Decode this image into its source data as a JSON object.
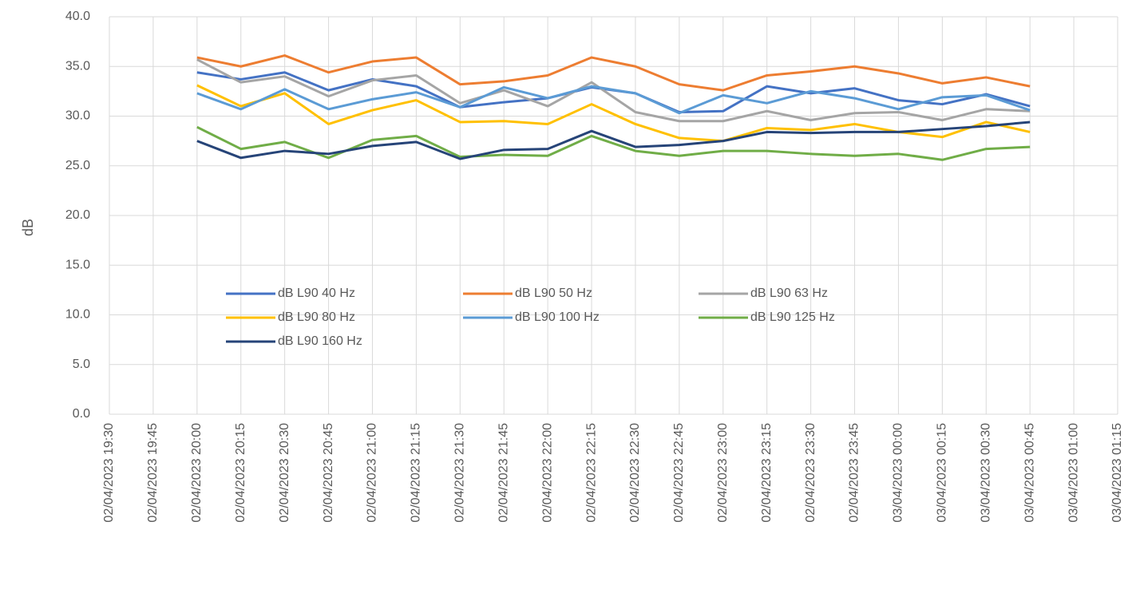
{
  "chart_data": {
    "type": "line",
    "y_label": "dB",
    "categories": [
      "02/04/2023 19:30",
      "02/04/2023 19:45",
      "02/04/2023 20:00",
      "02/04/2023 20:15",
      "02/04/2023 20:30",
      "02/04/2023 20:45",
      "02/04/2023 21:00",
      "02/04/2023 21:15",
      "02/04/2023 21:30",
      "02/04/2023 21:45",
      "02/04/2023 22:00",
      "02/04/2023 22:15",
      "02/04/2023 22:30",
      "02/04/2023 22:45",
      "02/04/2023 23:00",
      "02/04/2023 23:15",
      "02/04/2023 23:30",
      "02/04/2023 23:45",
      "03/04/2023 00:00",
      "03/04/2023 00:15",
      "03/04/2023 00:30",
      "03/04/2023 00:45",
      "03/04/2023 01:00",
      "03/04/2023 01:15"
    ],
    "series": [
      {
        "name": "dB L90 40 Hz",
        "color": "#4472c4",
        "values": [
          null,
          null,
          34.4,
          33.7,
          34.4,
          32.6,
          33.7,
          33.0,
          30.9,
          31.4,
          31.8,
          32.9,
          32.3,
          30.4,
          30.5,
          33.0,
          32.3,
          32.8,
          31.6,
          31.2,
          32.2,
          31.0,
          null,
          null
        ]
      },
      {
        "name": "dB L90 50 Hz",
        "color": "#ed7d31",
        "values": [
          null,
          null,
          35.9,
          35.0,
          36.1,
          34.4,
          35.5,
          35.9,
          33.2,
          33.5,
          34.1,
          35.9,
          35.0,
          33.2,
          32.6,
          34.1,
          34.5,
          35.0,
          34.3,
          33.3,
          33.9,
          33.0,
          null,
          null
        ]
      },
      {
        "name": "dB L90 63 Hz",
        "color": "#a5a5a5",
        "values": [
          null,
          null,
          35.7,
          33.4,
          34.0,
          32.0,
          33.6,
          34.1,
          31.3,
          32.6,
          31.0,
          33.4,
          30.4,
          29.5,
          29.5,
          30.5,
          29.6,
          30.3,
          30.4,
          29.6,
          30.7,
          30.5,
          null,
          null
        ]
      },
      {
        "name": "dB L90 80 Hz",
        "color": "#ffc000",
        "values": [
          null,
          null,
          33.1,
          31.0,
          32.3,
          29.2,
          30.6,
          31.6,
          29.4,
          29.5,
          29.2,
          31.2,
          29.2,
          27.8,
          27.5,
          28.8,
          28.6,
          29.2,
          28.4,
          27.9,
          29.4,
          28.4,
          null,
          null
        ]
      },
      {
        "name": "dB L90 100 Hz",
        "color": "#5b9bd5",
        "values": [
          null,
          null,
          32.3,
          30.7,
          32.7,
          30.7,
          31.7,
          32.4,
          30.9,
          32.9,
          31.8,
          33.0,
          32.3,
          30.3,
          32.1,
          31.3,
          32.5,
          31.8,
          30.7,
          31.9,
          32.1,
          30.6,
          null,
          null
        ]
      },
      {
        "name": "dB L90 125 Hz",
        "color": "#70ad47",
        "values": [
          null,
          null,
          28.9,
          26.7,
          27.4,
          25.8,
          27.6,
          28.0,
          25.9,
          26.1,
          26.0,
          28.0,
          26.5,
          26.0,
          26.5,
          26.5,
          26.2,
          26.0,
          26.2,
          25.6,
          26.7,
          26.9,
          null,
          null
        ]
      },
      {
        "name": "dB L90 160 Hz",
        "color": "#264478",
        "values": [
          null,
          null,
          27.5,
          25.8,
          26.5,
          26.2,
          27.0,
          27.4,
          25.7,
          26.6,
          26.7,
          28.5,
          26.9,
          27.1,
          27.5,
          28.4,
          28.3,
          28.4,
          28.4,
          28.7,
          29.0,
          29.4,
          null,
          null
        ]
      }
    ],
    "ylim": [
      0,
      40
    ],
    "yticks": [
      {
        "value": 0,
        "label": "0.0"
      },
      {
        "value": 5,
        "label": "5.0"
      },
      {
        "value": 10,
        "label": "10.0"
      },
      {
        "value": 15,
        "label": "15.0"
      },
      {
        "value": 20,
        "label": "20.0"
      },
      {
        "value": 25,
        "label": "25.0"
      },
      {
        "value": 30,
        "label": "30.0"
      },
      {
        "value": 35,
        "label": "35.0"
      },
      {
        "value": 40,
        "label": "40.0"
      }
    ],
    "grid": true
  }
}
